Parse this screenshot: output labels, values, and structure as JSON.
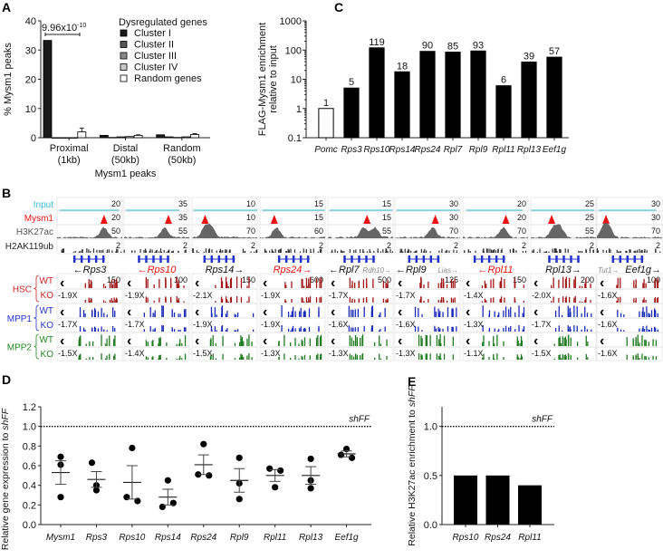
{
  "panels": {
    "a": "A",
    "b": "B",
    "c": "C",
    "d": "D",
    "e": "E"
  },
  "chart_data": [
    {
      "id": "A",
      "type": "bar",
      "ylabel": "% Mysm1 peaks",
      "xlabel": "Mysm1 peaks",
      "ylim": [
        0,
        40
      ],
      "yticks": [
        0,
        10,
        20,
        30,
        40
      ],
      "categories": [
        "Proximal\n(1kb)",
        "Distal\n(50kb)",
        "Random\n(50kb)"
      ],
      "legend_title": "Dysregulated genes",
      "legend_position": "top-right",
      "annotation": "9.96x10",
      "annotation_exp": "-10",
      "series": [
        {
          "name": "Cluster I",
          "color": "#1a1a1a",
          "values": [
            33.3,
            0.8,
            1.0
          ],
          "err": [
            0,
            0,
            0
          ]
        },
        {
          "name": "Cluster II",
          "color": "#555555",
          "values": [
            0.0,
            0.1,
            0.3
          ],
          "err": [
            0,
            0,
            0
          ]
        },
        {
          "name": "Cluster III",
          "color": "#888888",
          "values": [
            0.0,
            0.3,
            0.1
          ],
          "err": [
            0,
            0,
            0
          ]
        },
        {
          "name": "Cluster IV",
          "color": "#c8c8c8",
          "values": [
            0.0,
            0.4,
            0.3
          ],
          "err": [
            0,
            0,
            0
          ]
        },
        {
          "name": "Random genes",
          "color": "#ffffff",
          "values": [
            2.0,
            0.8,
            1.1
          ],
          "err": [
            1.3,
            0.2,
            0.3
          ]
        }
      ]
    },
    {
      "id": "C",
      "type": "bar",
      "yscale": "log",
      "ylabel": "FLAG-Mysm1 enrichment\nrelative to input",
      "ylim": [
        0.1,
        1000
      ],
      "yticks": [
        "0.1",
        "1",
        "10",
        "100",
        "1000"
      ],
      "categories": [
        "Pomc",
        "Rps3",
        "Rps10",
        "Rps14",
        "Rps24",
        "Rpl7",
        "Rpl9",
        "Rpl11",
        "Rpl13",
        "Eef1g"
      ],
      "values": [
        1,
        5,
        119,
        18,
        90,
        85,
        93,
        6,
        39,
        57
      ],
      "labels": [
        "1",
        "5",
        "119",
        "18",
        "90",
        "85",
        "93",
        "6",
        "39",
        "57"
      ],
      "colors": [
        "#ffffff",
        "#000000",
        "#000000",
        "#000000",
        "#000000",
        "#000000",
        "#000000",
        "#000000",
        "#000000",
        "#000000"
      ]
    },
    {
      "id": "D",
      "type": "scatter",
      "ylabel": "Relative gene expression to shFF",
      "ylim": [
        0,
        1.2
      ],
      "yticks": [
        "0.0",
        "0.2",
        "0.4",
        "0.6",
        "0.8",
        "1.0",
        "1.2"
      ],
      "reference_line": {
        "value": 1.0,
        "label": "shFF"
      },
      "categories": [
        "Mysm1",
        "Rps3",
        "Rps10",
        "Rps14",
        "Rps24",
        "Rpl9",
        "Rpl11",
        "Rpl13",
        "Eef1g"
      ],
      "points": [
        [
          0.69,
          0.61,
          0.28
        ],
        [
          0.63,
          0.4,
          0.35
        ],
        [
          0.78,
          0.28,
          0.24
        ],
        [
          0.45,
          0.22,
          0.18
        ],
        [
          0.82,
          0.51,
          0.5
        ],
        [
          0.68,
          0.42,
          0.26
        ],
        [
          0.57,
          0.55,
          0.38
        ],
        [
          0.67,
          0.45,
          0.37
        ],
        [
          0.77,
          0.71,
          0.68
        ]
      ],
      "mean": [
        0.53,
        0.46,
        0.43,
        0.28,
        0.61,
        0.45,
        0.5,
        0.5,
        0.72
      ],
      "sem": [
        0.12,
        0.08,
        0.17,
        0.08,
        0.1,
        0.12,
        0.06,
        0.09,
        0.03
      ]
    },
    {
      "id": "E",
      "type": "bar",
      "ylabel": "Relative H3K27ac enrichment to shFF",
      "ylim": [
        0,
        1.2
      ],
      "yticks": [
        "0.0",
        "0.5",
        "1.0"
      ],
      "reference_line": {
        "value": 1.0,
        "label": "shFF"
      },
      "categories": [
        "Rps10",
        "Rps24",
        "Rpl11"
      ],
      "values": [
        0.5,
        0.5,
        0.4
      ]
    }
  ],
  "tracks": {
    "rows": [
      {
        "label": "Input",
        "color": "#33bbdd"
      },
      {
        "label": "Mysm1",
        "color": "#ee1111"
      },
      {
        "label": "H3K27ac",
        "color": "#555555"
      },
      {
        "label": "H2AK119ub",
        "color": "#222222"
      }
    ],
    "groups": [
      {
        "label": "HSC",
        "color": "#cc2222",
        "track_color": "#a01818"
      },
      {
        "label": "MPP1",
        "color": "#2233cc",
        "track_color": "#1a2bb8"
      },
      {
        "label": "MPP2",
        "color": "#228822",
        "track_color": "#1f7a1f"
      }
    ],
    "wt": "WT",
    "ko": "KO",
    "loci": [
      {
        "gene": "←Rps3",
        "highlight": false,
        "other": "",
        "scales": [
          "20",
          "20",
          "50",
          "2"
        ],
        "hsc_scale": "150",
        "fold": [
          "-1.9X",
          "-1.7X",
          "-1.5X"
        ]
      },
      {
        "gene": "←Rps10",
        "highlight": true,
        "other": "",
        "scales": [
          "35",
          "35",
          "55",
          "2"
        ],
        "hsc_scale": "100",
        "fold": [
          "-1.9X",
          "-1.7X",
          "-1.4X"
        ]
      },
      {
        "gene": "Rps14→",
        "highlight": false,
        "other": "",
        "scales": [
          "10",
          "10",
          "70",
          "2"
        ],
        "hsc_scale": "150",
        "fold": [
          "-2.1X",
          "-1.9X",
          "-1.5X"
        ]
      },
      {
        "gene": "Rps24→",
        "highlight": true,
        "other": "",
        "scales": [
          "15",
          "15",
          "60",
          "2"
        ],
        "hsc_scale": "600",
        "fold": [
          "-1.9X",
          "-1.9X",
          "-1.3X"
        ]
      },
      {
        "gene": "←Rpl7",
        "highlight": false,
        "other": "Rdh10→",
        "scales": [
          "15",
          "15",
          "55",
          "2"
        ],
        "hsc_scale": "500",
        "fold": [
          "-1.7X",
          "-1.6X",
          "-1.3X"
        ]
      },
      {
        "gene": "←Rpl9",
        "highlight": false,
        "other": "Lias→",
        "scales": [
          "30",
          "30",
          "70",
          "2"
        ],
        "hsc_scale": "125",
        "fold": [
          "-1.7X",
          "-1.6X",
          "-1.3X"
        ]
      },
      {
        "gene": "←Rpl11",
        "highlight": true,
        "other": "",
        "scales": [
          "20",
          "20",
          "70",
          "2"
        ],
        "hsc_scale": "150",
        "fold": [
          "-1.4X",
          "-1.3X",
          "-1.1X"
        ]
      },
      {
        "gene": "Rpl13→",
        "highlight": false,
        "other": "",
        "scales": [
          "25",
          "25",
          "55",
          "2"
        ],
        "hsc_scale": "200",
        "fold": [
          "-2.0X",
          "-1.7X",
          "-1.5X"
        ]
      },
      {
        "gene": "Eef1g→",
        "highlight": false,
        "other": "Tut1→",
        "scales": [
          "30",
          "30",
          "70",
          "2"
        ],
        "hsc_scale": "100",
        "fold": [
          "-1.6X",
          "-1.6X",
          "-1.6X"
        ]
      }
    ]
  }
}
